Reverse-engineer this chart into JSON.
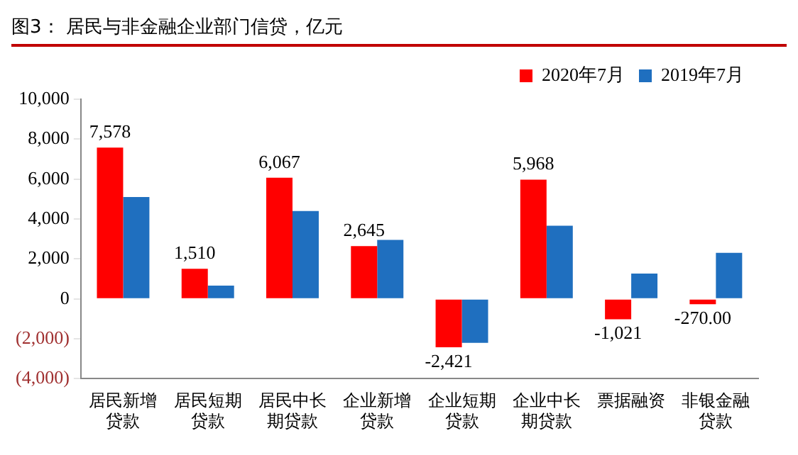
{
  "chart_data": {
    "type": "bar",
    "title": "图3：  居民与非金融企业部门信贷，亿元",
    "categories": [
      "居民新增贷款",
      "居民短期贷款",
      "居民中长期贷款",
      "企业新增贷款",
      "企业短期贷款",
      "企业中长期贷款",
      "票据融资",
      "非银金融贷款"
    ],
    "series": [
      {
        "name": "2020年7月",
        "color": "#ff0000",
        "values": [
          7578,
          1510,
          6067,
          2645,
          -2421,
          5968,
          -1021,
          -270
        ],
        "value_labels": [
          "7,578",
          "1,510",
          "6,067",
          "2,645",
          "-2,421",
          "5,968",
          "-1,021",
          "-270.00"
        ]
      },
      {
        "name": "2019年7月",
        "color": "#1f6fbf",
        "values": [
          5100,
          660,
          4400,
          2950,
          -2200,
          3660,
          1270,
          2310
        ]
      }
    ],
    "ylim": [
      -4000,
      10000
    ],
    "yticks": [
      {
        "value": -4000,
        "label": "(4,000)"
      },
      {
        "value": -2000,
        "label": "(2,000)"
      },
      {
        "value": 0,
        "label": "0"
      },
      {
        "value": 2000,
        "label": "2,000"
      },
      {
        "value": 4000,
        "label": "4,000"
      },
      {
        "value": 6000,
        "label": "6,000"
      },
      {
        "value": 8000,
        "label": "8,000"
      },
      {
        "value": 10000,
        "label": "10,000"
      }
    ],
    "grid": false,
    "legend": "top right"
  }
}
